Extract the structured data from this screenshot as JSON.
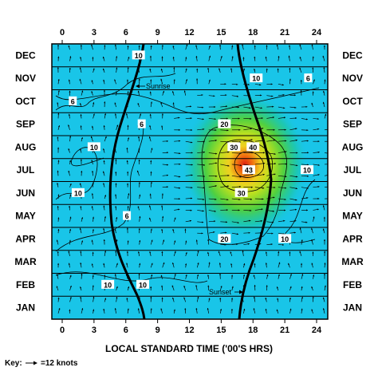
{
  "chart_data": {
    "type": "heatmap",
    "xlabel": "LOCAL STANDARD TIME ('00'S HRS)",
    "x_ticks": [
      "0",
      "3",
      "6",
      "9",
      "12",
      "15",
      "18",
      "21",
      "24"
    ],
    "xlim": [
      0,
      24
    ],
    "months": [
      "JAN",
      "FEB",
      "MAR",
      "APR",
      "MAY",
      "JUN",
      "JUL",
      "AUG",
      "SEP",
      "OCT",
      "NOV",
      "DEC"
    ],
    "background_color": "#19c5e8",
    "peak": {
      "value": 43,
      "hour": 17.6,
      "month": "JUL"
    },
    "contour_labels": [
      {
        "text": "10",
        "hour": 7.2,
        "month": "DEC"
      },
      {
        "text": "10",
        "hour": 18.3,
        "month": "NOV"
      },
      {
        "text": "6",
        "hour": 23.2,
        "month": "NOV"
      },
      {
        "text": "6",
        "hour": 1.0,
        "month": "OCT"
      },
      {
        "text": "6",
        "hour": 7.5,
        "month": "SEP"
      },
      {
        "text": "20",
        "hour": 15.3,
        "month": "SEP"
      },
      {
        "text": "30",
        "hour": 16.2,
        "month": "AUG"
      },
      {
        "text": "10",
        "hour": 3.0,
        "month": "AUG"
      },
      {
        "text": "40",
        "hour": 18.0,
        "month": "AUG"
      },
      {
        "text": "43",
        "hour": 17.6,
        "month": "JUL"
      },
      {
        "text": "10",
        "hour": 23.1,
        "month": "JUL"
      },
      {
        "text": "10",
        "hour": 1.5,
        "month": "JUN"
      },
      {
        "text": "30",
        "hour": 16.9,
        "month": "JUN"
      },
      {
        "text": "6",
        "hour": 6.1,
        "month": "MAY"
      },
      {
        "text": "20",
        "hour": 15.3,
        "month": "APR"
      },
      {
        "text": "10",
        "hour": 21.0,
        "month": "APR"
      },
      {
        "text": "10",
        "hour": 4.3,
        "month": "FEB"
      },
      {
        "text": "10",
        "hour": 7.6,
        "month": "FEB"
      }
    ],
    "sunrise_label": "Sunrise",
    "sunset_label": "Sunset",
    "key_prefix": "Key:",
    "key_suffix": "=12 knots"
  }
}
